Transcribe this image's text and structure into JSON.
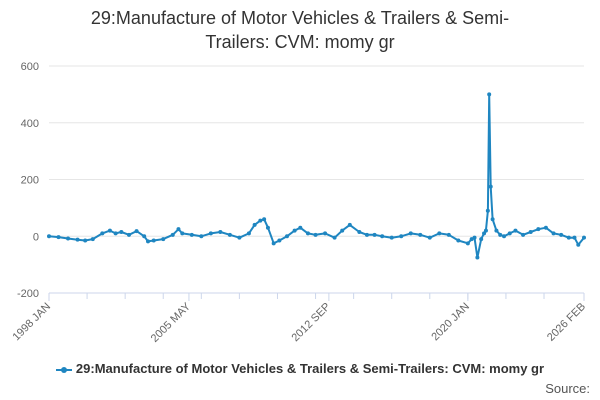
{
  "chart_data": {
    "type": "line",
    "title_lines": [
      "29:Manufacture of Motor Vehicles & Trailers & Semi-",
      "Trailers: CVM: momy gr"
    ],
    "title": "29:Manufacture of Motor Vehicles & Trailers & Semi-Trailers: CVM: momy gr",
    "xlabel": "",
    "ylabel": "",
    "ylim": [
      -200,
      600
    ],
    "yticks": [
      -200,
      0,
      200,
      400,
      600
    ],
    "xlim": [
      1998.0,
      2026.1
    ],
    "xticks": [
      {
        "value": 1998.0,
        "label": "1998 JAN"
      },
      {
        "value": 2005.35,
        "label": "2005 MAY"
      },
      {
        "value": 2012.7,
        "label": "2012 SEP"
      },
      {
        "value": 2020.0,
        "label": "2020 JAN"
      },
      {
        "value": 2026.1,
        "label": "2026 FEB"
      }
    ],
    "grid": "horizontal",
    "legend_position": "bottom",
    "series": [
      {
        "name": "29:Manufacture of Motor Vehicles & Trailers & Semi-Trailers: CVM: momy gr",
        "color": "#1f86c1",
        "x": [
          1998.0,
          1998.5,
          1999.0,
          1999.5,
          1999.9,
          2000.3,
          2000.8,
          2001.2,
          2001.5,
          2001.8,
          2002.2,
          2002.6,
          2003.0,
          2003.2,
          2003.5,
          2004.0,
          2004.5,
          2004.8,
          2005.0,
          2005.5,
          2006.0,
          2006.5,
          2007.0,
          2007.5,
          2008.0,
          2008.5,
          2008.8,
          2009.1,
          2009.3,
          2009.5,
          2009.8,
          2010.1,
          2010.5,
          2010.9,
          2011.2,
          2011.6,
          2012.0,
          2012.5,
          2013.0,
          2013.4,
          2013.8,
          2014.3,
          2014.7,
          2015.1,
          2015.5,
          2016.0,
          2016.5,
          2017.0,
          2017.5,
          2018.0,
          2018.5,
          2019.0,
          2019.5,
          2020.0,
          2020.2,
          2020.35,
          2020.5,
          2020.7,
          2020.85,
          2020.95,
          2021.05,
          2021.12,
          2021.2,
          2021.3,
          2021.5,
          2021.7,
          2021.9,
          2022.2,
          2022.5,
          2022.9,
          2023.3,
          2023.7,
          2024.1,
          2024.5,
          2024.9,
          2025.3,
          2025.6,
          2025.8,
          2026.1
        ],
        "y": [
          0,
          -3,
          -8,
          -12,
          -15,
          -10,
          10,
          20,
          10,
          15,
          5,
          18,
          0,
          -18,
          -15,
          -10,
          5,
          25,
          10,
          5,
          0,
          10,
          15,
          5,
          -5,
          10,
          40,
          55,
          60,
          30,
          -25,
          -15,
          0,
          20,
          30,
          10,
          5,
          10,
          -5,
          20,
          40,
          15,
          5,
          5,
          0,
          -5,
          0,
          10,
          5,
          -5,
          10,
          5,
          -15,
          -25,
          -10,
          -5,
          -75,
          -10,
          10,
          20,
          90,
          500,
          175,
          60,
          20,
          5,
          0,
          10,
          20,
          5,
          15,
          25,
          30,
          10,
          5,
          -5,
          -5,
          -30,
          -5
        ]
      }
    ]
  },
  "legend": {
    "label": "29:Manufacture of Motor Vehicles & Trailers & Semi-Trailers: CVM: momy gr"
  },
  "source": {
    "label": "Source:"
  }
}
